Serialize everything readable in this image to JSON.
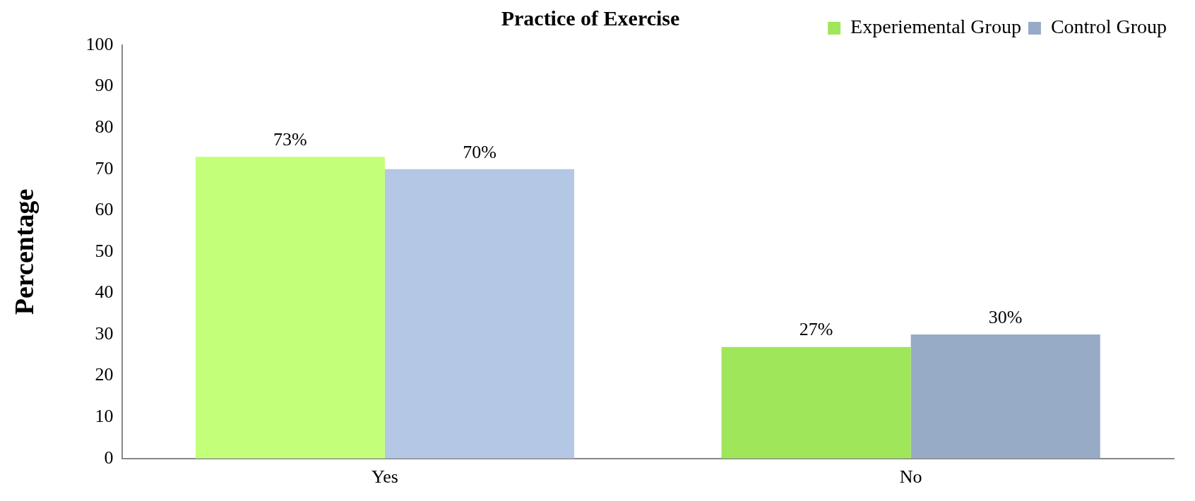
{
  "chart_data": {
    "type": "bar",
    "title": "Practice of Exercise",
    "ylabel": "Percentage",
    "categories": [
      "Yes",
      "No"
    ],
    "series": [
      {
        "name": "Experiemental Group",
        "color": "#a0e65a",
        "colors": [
          "#c4ff7a",
          "#a0e65a"
        ],
        "values": [
          73,
          27
        ],
        "value_labels": [
          "73%",
          "27%"
        ]
      },
      {
        "name": "Control Group",
        "color": "#97aac6",
        "colors": [
          "#b4c7e4",
          "#97aac6"
        ],
        "values": [
          70,
          30
        ],
        "value_labels": [
          "70%",
          "30%"
        ]
      }
    ],
    "ylim": [
      0,
      100
    ],
    "yticks": [
      0,
      10,
      20,
      30,
      40,
      50,
      60,
      70,
      80,
      90,
      100
    ],
    "grid": false,
    "legend": "top right"
  }
}
